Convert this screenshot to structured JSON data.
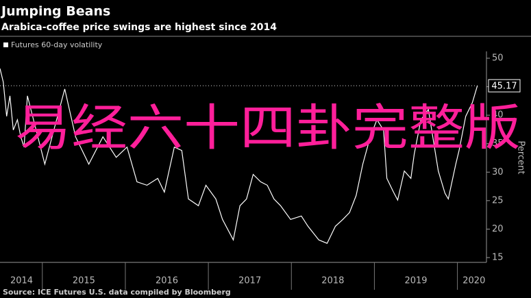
{
  "chart_data": {
    "type": "line",
    "title": "Jumping Beans",
    "subtitle": "Arabica-coffee price swings are highest since 2014",
    "y_axis_label": "Percent",
    "source": "Source: ICE Futures U.S. data compiled by Bloomberg",
    "overlay_text": "易经六十四卦完整版",
    "x": [
      2014.49,
      2014.53,
      2014.57,
      2014.61,
      2014.65,
      2014.7,
      2014.74,
      2014.78,
      2014.82,
      2015.03,
      2015.27,
      2015.4,
      2015.56,
      2015.73,
      2015.89,
      2016.02,
      2016.14,
      2016.26,
      2016.39,
      2016.47,
      2016.59,
      2016.68,
      2016.76,
      2016.88,
      2016.97,
      2017.09,
      2017.17,
      2017.3,
      2017.38,
      2017.46,
      2017.54,
      2017.63,
      2017.71,
      2017.79,
      2017.87,
      2017.99,
      2018.12,
      2018.2,
      2018.33,
      2018.43,
      2018.53,
      2018.62,
      2018.7,
      2018.78,
      2018.86,
      2018.95,
      2019.03,
      2019.11,
      2019.15,
      2019.23,
      2019.28,
      2019.36,
      2019.44,
      2019.48,
      2019.56,
      2019.65,
      2019.77,
      2019.85,
      2019.89,
      2019.98,
      2020.02,
      2020.1,
      2020.18,
      2020.24
    ],
    "series": [
      {
        "name": "Futures 60-day volatility",
        "color": "#ffffff",
        "values": [
          48.2,
          45.8,
          39.8,
          43.4,
          37.4,
          39.2,
          36.2,
          34.4,
          43.4,
          31.4,
          44.6,
          36.2,
          31.4,
          36.2,
          32.6,
          34.4,
          28.3,
          27.7,
          28.9,
          26.5,
          34.4,
          33.8,
          25.3,
          24.1,
          27.7,
          25.3,
          21.7,
          18.1,
          24.1,
          25.3,
          29.6,
          28.3,
          27.7,
          25.3,
          24.1,
          21.7,
          22.3,
          20.5,
          18.1,
          17.5,
          20.5,
          21.7,
          22.9,
          25.9,
          31.4,
          36.2,
          39.2,
          37.4,
          28.9,
          26.5,
          25.1,
          30.2,
          28.9,
          33.2,
          39.2,
          41.0,
          30.2,
          26.3,
          25.3,
          31.4,
          33.8,
          39.8,
          42.2,
          45.17
        ]
      }
    ],
    "reference_line": {
      "value": 45.17
    },
    "xlim": [
      2014.49,
      2020.35
    ],
    "xticks": [
      {
        "value": 2014.75,
        "label": "2014"
      },
      {
        "value": 2015.5,
        "label": "2015"
      },
      {
        "value": 2016.5,
        "label": "2016"
      },
      {
        "value": 2017.5,
        "label": "2017"
      },
      {
        "value": 2018.5,
        "label": "2018"
      },
      {
        "value": 2019.5,
        "label": "2019"
      },
      {
        "value": 2020.2,
        "label": "2020"
      }
    ],
    "x_boundaries": [
      2015,
      2016,
      2017,
      2018,
      2019,
      2020
    ],
    "ylim": [
      15,
      50
    ],
    "yticks": [
      15,
      20,
      25,
      30,
      35,
      40,
      45,
      50
    ],
    "grid": false
  }
}
